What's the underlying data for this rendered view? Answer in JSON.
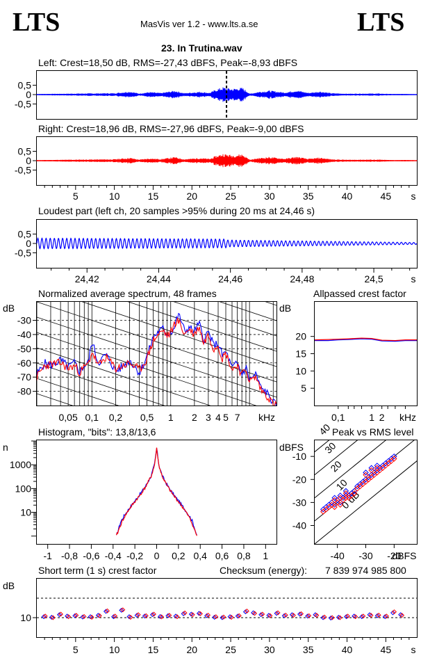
{
  "header": {
    "logo_left": "LTS",
    "logo_right": "LTS",
    "app_title": "MasVis ver 1.2 - www.lts.a.se",
    "file_title": "23. In Trutina.wav"
  },
  "colors": {
    "left": "#0000ff",
    "right": "#ff0000",
    "axis": "#000000"
  },
  "chart_data": [
    {
      "id": "left-waveform",
      "type": "area",
      "title": "Left: Crest=18,50 dB, RMS=-27,43 dBFS, Peak=-8,93 dBFS",
      "yticks": [
        "0,5",
        "0",
        "-0,5"
      ],
      "ylim": [
        -1,
        1
      ],
      "xlim": [
        0,
        49
      ],
      "marker_x": 24.46,
      "series": [
        {
          "x": [
            0,
            5,
            10,
            12,
            13.2,
            14.5,
            16,
            17.8,
            19,
            21,
            22.3,
            23,
            24,
            25.2,
            26.5,
            27.5,
            28.5,
            30,
            32,
            33.5,
            35,
            36.5,
            38,
            40,
            42,
            44,
            46,
            47.5,
            49
          ],
          "amplitude": [
            0.03,
            0.06,
            0.08,
            0.18,
            0.06,
            0.14,
            0.09,
            0.22,
            0.08,
            0.16,
            0.1,
            0.26,
            0.4,
            0.32,
            0.38,
            0.05,
            0.15,
            0.22,
            0.12,
            0.24,
            0.1,
            0.18,
            0.08,
            0.05,
            0.06,
            0.06,
            0.03,
            0.04,
            0.02
          ]
        }
      ]
    },
    {
      "id": "right-waveform",
      "type": "area",
      "title": "Right: Crest=18,96 dB, RMS=-27,96 dBFS, Peak=-9,00 dBFS",
      "yticks": [
        "0,5",
        "0",
        "-0,5"
      ],
      "ylim": [
        -1,
        1
      ],
      "xlim": [
        0,
        49
      ],
      "x_ticklabels": [
        "5",
        "10",
        "15",
        "20",
        "25",
        "30",
        "35",
        "40",
        "45",
        "s"
      ],
      "series": [
        {
          "x": [
            0,
            5,
            10,
            12,
            13.2,
            14.5,
            16,
            17.8,
            19,
            21,
            22.3,
            23,
            24,
            25.2,
            26.5,
            27.5,
            28.5,
            30,
            32,
            33.5,
            35,
            36.5,
            38,
            40,
            42,
            44,
            46,
            47.5,
            49
          ],
          "amplitude": [
            0.03,
            0.06,
            0.08,
            0.16,
            0.06,
            0.13,
            0.09,
            0.2,
            0.08,
            0.15,
            0.1,
            0.24,
            0.38,
            0.3,
            0.36,
            0.05,
            0.14,
            0.2,
            0.11,
            0.22,
            0.1,
            0.17,
            0.08,
            0.05,
            0.06,
            0.06,
            0.03,
            0.04,
            0.02
          ]
        }
      ]
    },
    {
      "id": "loudest-part",
      "type": "line",
      "title": "Loudest part (left  ch, 20 samples >95% during 20 ms at 24,46 s)",
      "yticks": [
        "0,5",
        "0",
        "-0,5"
      ],
      "ylim": [
        -1,
        1
      ],
      "xlim": [
        24.406,
        24.512
      ],
      "x_ticklabels": [
        "24,42",
        "24,44",
        "24,46",
        "24,48",
        "24,5",
        "s"
      ],
      "cycles": 92,
      "amplitude": [
        0.28,
        0.18,
        0.05
      ]
    },
    {
      "id": "spectrum",
      "type": "line",
      "title": "Normalized average spectrum, 48 frames",
      "ylabel": "dB",
      "yticks": [
        "-30",
        "-40",
        "-50",
        "-60",
        "-70",
        "-80"
      ],
      "ylim": [
        -90,
        -17
      ],
      "x_ticklabels": [
        "0,05",
        "0,1",
        "0,2",
        "0,5",
        "1",
        "2",
        "3",
        "4",
        "5",
        "7",
        "kHz"
      ],
      "xlim_khz": [
        0.02,
        22
      ],
      "series": [
        {
          "name": "left",
          "x": [
            0.02,
            0.025,
            0.03,
            0.04,
            0.05,
            0.06,
            0.07,
            0.08,
            0.09,
            0.1,
            0.12,
            0.15,
            0.2,
            0.3,
            0.4,
            0.5,
            0.6,
            0.7,
            0.8,
            0.9,
            1.0,
            1.1,
            1.2,
            1.3,
            1.5,
            1.7,
            2,
            2.3,
            2.6,
            3,
            3.5,
            4,
            4.5,
            5,
            6,
            7,
            8,
            9,
            10,
            12,
            14,
            16,
            20,
            22
          ],
          "y": [
            -68,
            -60,
            -62,
            -58,
            -63,
            -60,
            -66,
            -62,
            -60,
            -45,
            -60,
            -54,
            -66,
            -58,
            -67,
            -55,
            -42,
            -38,
            -36,
            -40,
            -38,
            -36,
            -28,
            -27,
            -38,
            -35,
            -38,
            -32,
            -44,
            -38,
            -48,
            -46,
            -55,
            -52,
            -64,
            -60,
            -68,
            -63,
            -72,
            -68,
            -78,
            -80,
            -88,
            -90
          ]
        },
        {
          "name": "right",
          "x": [
            0.02,
            0.025,
            0.03,
            0.04,
            0.05,
            0.06,
            0.07,
            0.08,
            0.09,
            0.1,
            0.12,
            0.15,
            0.2,
            0.3,
            0.4,
            0.5,
            0.6,
            0.7,
            0.8,
            0.9,
            1.0,
            1.1,
            1.2,
            1.3,
            1.5,
            1.7,
            2,
            2.3,
            2.6,
            3,
            3.5,
            4,
            4.5,
            5,
            6,
            7,
            8,
            9,
            10,
            12,
            14,
            16,
            20,
            22
          ],
          "y": [
            -70,
            -62,
            -61,
            -60,
            -64,
            -62,
            -67,
            -63,
            -61,
            -52,
            -62,
            -56,
            -64,
            -60,
            -65,
            -57,
            -44,
            -40,
            -37,
            -41,
            -39,
            -33,
            -30,
            -32,
            -40,
            -36,
            -40,
            -34,
            -46,
            -40,
            -50,
            -47,
            -57,
            -53,
            -65,
            -61,
            -69,
            -64,
            -73,
            -70,
            -79,
            -82,
            -89,
            -90
          ]
        }
      ]
    },
    {
      "id": "allpassed-crest",
      "type": "line",
      "title": "Allpassed crest factor",
      "ylabel": "dB",
      "yticks": [
        "20",
        "15",
        "10",
        "5"
      ],
      "ylim": [
        0,
        30
      ],
      "x_ticklabels": [
        "0,1",
        "1",
        "2",
        "kHz"
      ],
      "series": [
        {
          "name": "left",
          "x": [
            0.02,
            0.05,
            0.1,
            0.2,
            0.5,
            1,
            2,
            5,
            10,
            22
          ],
          "y": [
            18.8,
            18.8,
            19.0,
            19.1,
            19.3,
            19.2,
            18.7,
            18.6,
            18.8,
            18.8
          ]
        },
        {
          "name": "right",
          "x": [
            0.02,
            0.05,
            0.1,
            0.2,
            0.5,
            1,
            2,
            5,
            10,
            22
          ],
          "y": [
            19.0,
            19.1,
            19.2,
            19.3,
            19.5,
            19.4,
            18.9,
            18.8,
            19.0,
            19.0
          ]
        }
      ]
    },
    {
      "id": "histogram",
      "type": "line",
      "title": "Histogram, \"bits\": 13,8/13,6",
      "ylabel": "n",
      "yticks": [
        "1000",
        "100",
        "10"
      ],
      "ylog": true,
      "x_ticklabels": [
        "-1",
        "-0,8",
        "-0,6",
        "-0,4",
        "-0,2",
        "0",
        "0,2",
        "0,4",
        "0,6",
        "0,8",
        "1"
      ],
      "xlim": [
        -1.1,
        1.1
      ],
      "series": [
        {
          "name": "left",
          "x": [
            -0.37,
            -0.33,
            -0.3,
            -0.25,
            -0.2,
            -0.15,
            -0.1,
            -0.05,
            -0.02,
            0,
            0.02,
            0.05,
            0.1,
            0.15,
            0.2,
            0.25,
            0.3,
            0.33,
            0.37
          ],
          "y": [
            1,
            4,
            7,
            15,
            30,
            60,
            130,
            350,
            1000,
            5000,
            1000,
            350,
            130,
            60,
            30,
            15,
            7,
            4,
            1
          ]
        },
        {
          "name": "right",
          "x": [
            -0.37,
            -0.33,
            -0.3,
            -0.25,
            -0.2,
            -0.15,
            -0.1,
            -0.05,
            -0.02,
            0,
            0.02,
            0.05,
            0.1,
            0.15,
            0.2,
            0.25,
            0.3,
            0.33,
            0.37
          ],
          "y": [
            1,
            3,
            6,
            14,
            28,
            55,
            120,
            330,
            950,
            4800,
            950,
            330,
            120,
            55,
            28,
            14,
            6,
            3,
            1
          ]
        }
      ]
    },
    {
      "id": "peak-vs-rms",
      "type": "scatter",
      "title": "Peak vs RMS level",
      "ylabel": "dBFS",
      "xlabel": "dBFS",
      "yticks": [
        "-10",
        "-20",
        "-30",
        "-40"
      ],
      "ylim": [
        -48,
        -3
      ],
      "x_ticklabels": [
        "-40",
        "-30",
        "-20"
      ],
      "xlim": [
        -48,
        -12
      ],
      "crest_line_labels": [
        "40",
        "30",
        "20",
        "10",
        "0 dB"
      ],
      "series": [
        {
          "name": "left",
          "x": [
            -45,
            -44,
            -43,
            -42,
            -41,
            -40,
            -39,
            -38,
            -37,
            -36,
            -35,
            -34,
            -33,
            -32,
            -31,
            -30,
            -29,
            -28,
            -27,
            -26,
            -25,
            -24,
            -23,
            -22,
            -21,
            -20,
            -41,
            -39,
            -37,
            -30,
            -28,
            -26
          ],
          "y": [
            -33,
            -32,
            -31,
            -30,
            -31,
            -29,
            -30,
            -28,
            -27,
            -27,
            -26,
            -25,
            -23,
            -22,
            -21,
            -20,
            -19,
            -18,
            -17,
            -16,
            -15,
            -14,
            -13,
            -12,
            -11,
            -10,
            -28,
            -27,
            -25,
            -17,
            -15,
            -14
          ]
        },
        {
          "name": "right",
          "x": [
            -45,
            -44,
            -43,
            -42,
            -41,
            -40,
            -39,
            -38,
            -37,
            -36,
            -35,
            -34,
            -33,
            -32,
            -31,
            -30,
            -29,
            -28,
            -27,
            -26,
            -25,
            -24,
            -23,
            -22,
            -21,
            -20,
            -41,
            -39,
            -37,
            -30,
            -28,
            -26
          ],
          "y": [
            -34,
            -33,
            -32,
            -31,
            -32,
            -30,
            -31,
            -29,
            -28,
            -28,
            -27,
            -26,
            -24,
            -23,
            -22,
            -21,
            -20,
            -19,
            -18,
            -17,
            -16,
            -15,
            -14,
            -13,
            -12,
            -11,
            -29,
            -28,
            -26,
            -18,
            -16,
            -15
          ]
        }
      ]
    },
    {
      "id": "short-term-crest",
      "type": "scatter",
      "title": "Short term (1 s) crest factor",
      "checksum_label": "Checksum (energy):",
      "checksum_value": "7 839 974 985 800",
      "ylabel": "dB",
      "yticks": [
        "10"
      ],
      "ylim": [
        0,
        30
      ],
      "x_ticklabels": [
        "5",
        "10",
        "15",
        "20",
        "25",
        "30",
        "35",
        "40",
        "45",
        "s"
      ],
      "xlim": [
        0,
        49
      ],
      "series": [
        {
          "name": "left",
          "x": [
            1,
            2,
            3,
            4,
            5,
            6,
            7,
            8,
            9,
            10,
            11,
            12,
            13,
            14,
            15,
            16,
            17,
            18,
            19,
            20,
            21,
            22,
            23,
            24,
            25,
            26,
            27,
            28,
            29,
            30,
            31,
            32,
            33,
            34,
            35,
            36,
            37,
            38,
            39,
            40,
            41,
            42,
            43,
            44,
            45,
            46,
            47
          ],
          "y": [
            10.5,
            10.2,
            11.5,
            10.8,
            11.0,
            10.3,
            10.5,
            11.2,
            13.2,
            10.5,
            13.8,
            10.5,
            11.2,
            10.8,
            11.5,
            10.6,
            11.0,
            10.8,
            12.0,
            11.8,
            12.2,
            11.0,
            10.2,
            10.0,
            10.5,
            10.8,
            13.0,
            12.5,
            11.5,
            11.2,
            12.2,
            11.0,
            11.5,
            11.8,
            10.8,
            11.5,
            10.0,
            9.8,
            10.2,
            10.5,
            10.8,
            10.5,
            11.5,
            11.0,
            10.5,
            12.5,
            11.5
          ]
        },
        {
          "name": "right",
          "x": [
            1,
            2,
            3,
            4,
            5,
            6,
            7,
            8,
            9,
            10,
            11,
            12,
            13,
            14,
            15,
            16,
            17,
            18,
            19,
            20,
            21,
            22,
            23,
            24,
            25,
            26,
            27,
            28,
            29,
            30,
            31,
            32,
            33,
            34,
            35,
            36,
            37,
            38,
            39,
            40,
            41,
            42,
            43,
            44,
            45,
            46,
            47
          ],
          "y": [
            10.8,
            10.0,
            11.8,
            10.5,
            11.2,
            10.6,
            10.2,
            11.0,
            13.5,
            10.8,
            14.0,
            10.2,
            11.5,
            11.0,
            11.8,
            10.4,
            11.2,
            10.5,
            12.4,
            11.5,
            12.0,
            11.3,
            10.5,
            10.3,
            10.2,
            11.0,
            13.4,
            12.2,
            11.8,
            11.0,
            12.5,
            11.3,
            11.2,
            12.0,
            11.0,
            11.2,
            10.3,
            10.0,
            10.0,
            10.8,
            10.5,
            10.8,
            11.2,
            11.3,
            10.8,
            13.0,
            11.2
          ]
        }
      ]
    }
  ]
}
